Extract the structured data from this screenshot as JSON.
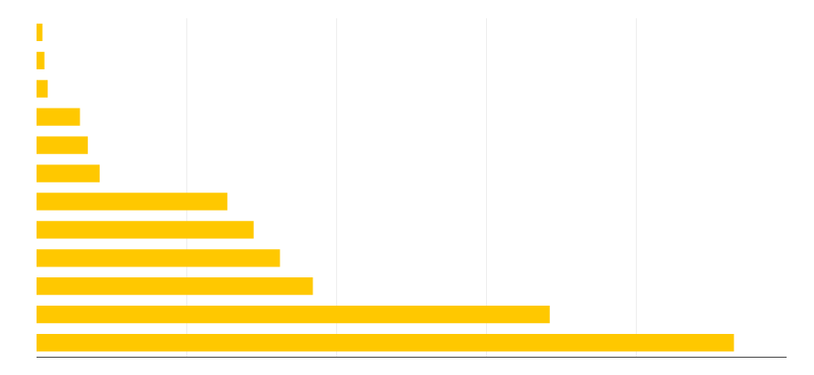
{
  "chart_data": {
    "type": "bar",
    "orientation": "horizontal",
    "values": [
      5300,
      3900,
      2100,
      1850,
      1650,
      1450,
      480,
      390,
      330,
      85,
      60,
      45
    ],
    "color": "#ffc800",
    "xlim": [
      0,
      5700
    ],
    "xticks": [
      1140,
      2280,
      3420,
      4560,
      5700
    ],
    "grid": true,
    "tick_labels": false
  }
}
